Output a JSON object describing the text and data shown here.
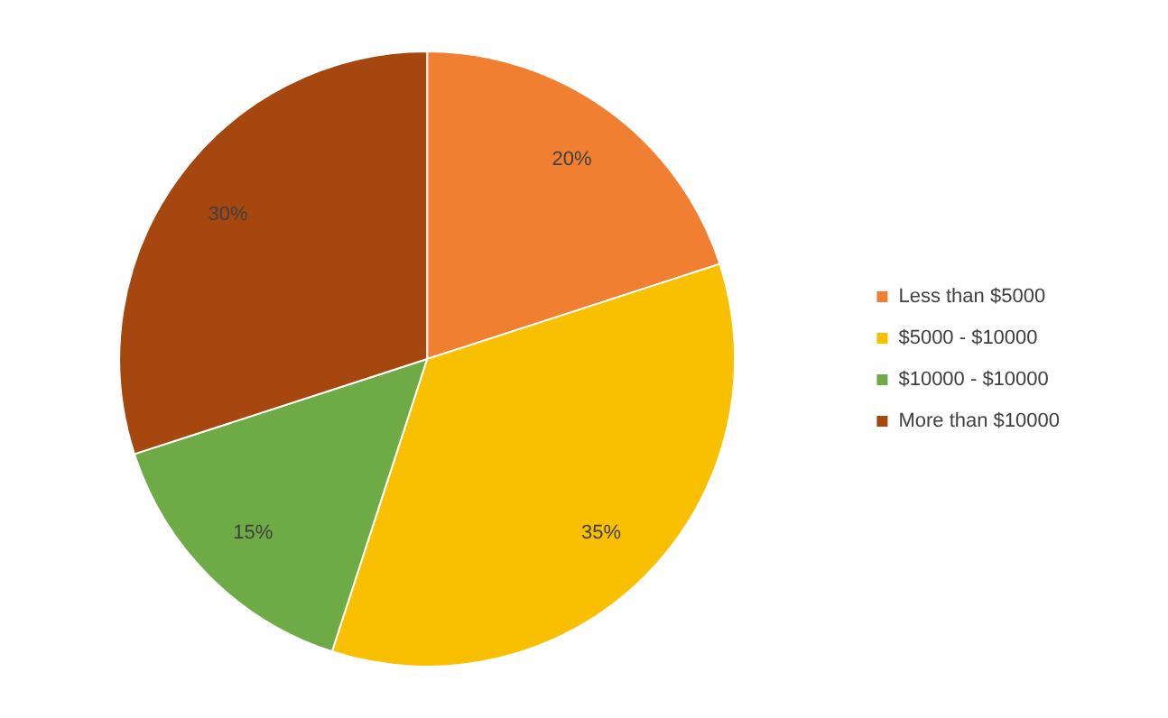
{
  "chart_data": {
    "type": "pie",
    "categories": [
      "Less than $5000",
      "$5000 - $10000",
      "$10000 - $10000",
      "More than $10000"
    ],
    "values": [
      20,
      35,
      15,
      30
    ],
    "colors": [
      "#f07f32",
      "#f8c000",
      "#6eaa45",
      "#a5470f"
    ],
    "value_labels": [
      "20%",
      "35%",
      "15%",
      "30%"
    ],
    "legend": "right"
  }
}
